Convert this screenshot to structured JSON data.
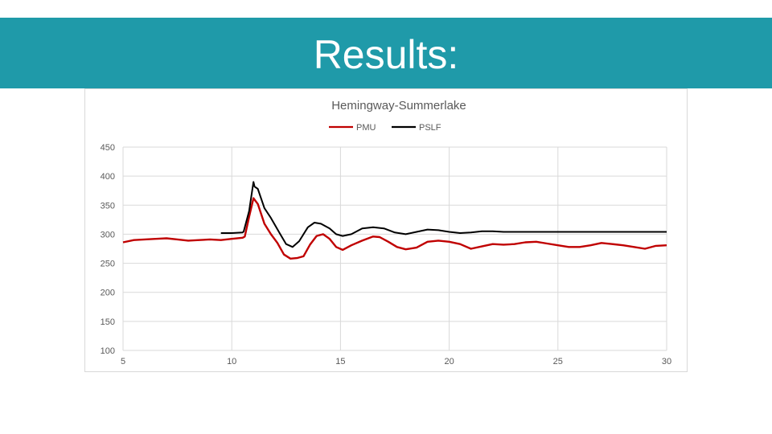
{
  "slide": {
    "title": "Results:",
    "banner_color": "#1f9aa9"
  },
  "chart_data": {
    "type": "line",
    "title": "Hemingway-Summerlake",
    "xlabel": "",
    "ylabel": "",
    "xlim": [
      5,
      30
    ],
    "ylim": [
      100,
      450
    ],
    "xticks": [
      5,
      10,
      15,
      20,
      25,
      30
    ],
    "yticks": [
      100,
      150,
      200,
      250,
      300,
      350,
      400,
      450
    ],
    "grid": true,
    "legend_position": "top-center",
    "series": [
      {
        "name": "PMU",
        "color": "#c00000",
        "points": [
          [
            5,
            286
          ],
          [
            5.5,
            290
          ],
          [
            6,
            291
          ],
          [
            6.5,
            292
          ],
          [
            7,
            293
          ],
          [
            7.5,
            291
          ],
          [
            8,
            289
          ],
          [
            8.5,
            290
          ],
          [
            9,
            291
          ],
          [
            9.5,
            290
          ],
          [
            10,
            292
          ],
          [
            10.5,
            294
          ],
          [
            10.6,
            296
          ],
          [
            10.8,
            330
          ],
          [
            11.0,
            362
          ],
          [
            11.2,
            352
          ],
          [
            11.5,
            318
          ],
          [
            11.8,
            300
          ],
          [
            12.1,
            285
          ],
          [
            12.4,
            265
          ],
          [
            12.7,
            258
          ],
          [
            13.0,
            259
          ],
          [
            13.3,
            262
          ],
          [
            13.6,
            282
          ],
          [
            13.9,
            297
          ],
          [
            14.2,
            300
          ],
          [
            14.5,
            292
          ],
          [
            14.8,
            278
          ],
          [
            15.1,
            273
          ],
          [
            15.5,
            281
          ],
          [
            16,
            289
          ],
          [
            16.5,
            296
          ],
          [
            16.8,
            295
          ],
          [
            17.2,
            287
          ],
          [
            17.6,
            278
          ],
          [
            18,
            274
          ],
          [
            18.5,
            277
          ],
          [
            19,
            287
          ],
          [
            19.5,
            289
          ],
          [
            20,
            287
          ],
          [
            20.5,
            283
          ],
          [
            21,
            275
          ],
          [
            21.5,
            279
          ],
          [
            22,
            283
          ],
          [
            22.5,
            282
          ],
          [
            23,
            283
          ],
          [
            23.5,
            286
          ],
          [
            24,
            287
          ],
          [
            24.5,
            284
          ],
          [
            25,
            281
          ],
          [
            25.5,
            278
          ],
          [
            26,
            278
          ],
          [
            26.5,
            281
          ],
          [
            27,
            285
          ],
          [
            27.5,
            283
          ],
          [
            28,
            281
          ],
          [
            28.5,
            278
          ],
          [
            29,
            275
          ],
          [
            29.5,
            280
          ],
          [
            30,
            281
          ]
        ]
      },
      {
        "name": "PSLF",
        "color": "#000000",
        "points": [
          [
            9.5,
            302
          ],
          [
            10.0,
            302
          ],
          [
            10.5,
            303
          ],
          [
            10.55,
            305
          ],
          [
            10.8,
            340
          ],
          [
            11.0,
            390
          ],
          [
            11.05,
            382
          ],
          [
            11.2,
            378
          ],
          [
            11.5,
            345
          ],
          [
            11.8,
            328
          ],
          [
            12.2,
            302
          ],
          [
            12.5,
            283
          ],
          [
            12.8,
            278
          ],
          [
            13.1,
            288
          ],
          [
            13.5,
            312
          ],
          [
            13.8,
            320
          ],
          [
            14.1,
            318
          ],
          [
            14.5,
            310
          ],
          [
            14.8,
            300
          ],
          [
            15.1,
            297
          ],
          [
            15.5,
            300
          ],
          [
            16,
            310
          ],
          [
            16.5,
            312
          ],
          [
            17,
            310
          ],
          [
            17.5,
            303
          ],
          [
            18,
            300
          ],
          [
            18.5,
            304
          ],
          [
            19,
            308
          ],
          [
            19.5,
            307
          ],
          [
            20,
            304
          ],
          [
            20.5,
            302
          ],
          [
            21,
            303
          ],
          [
            21.5,
            305
          ],
          [
            22,
            305
          ],
          [
            22.5,
            304
          ],
          [
            23,
            304
          ],
          [
            24,
            304
          ],
          [
            25,
            304
          ],
          [
            26,
            304
          ],
          [
            27,
            304
          ],
          [
            28,
            304
          ],
          [
            29,
            304
          ],
          [
            30,
            304
          ]
        ]
      }
    ]
  }
}
